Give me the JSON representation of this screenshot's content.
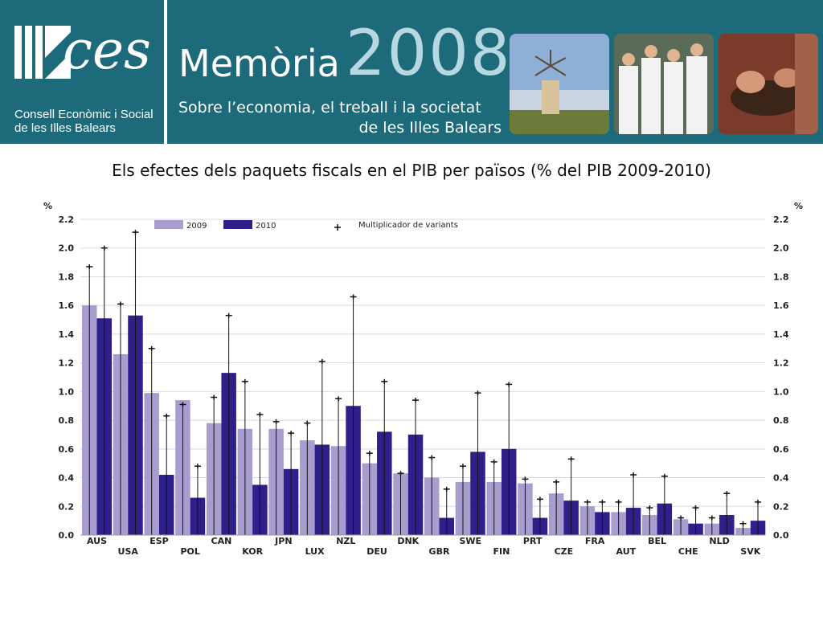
{
  "header": {
    "logo_text": "ces",
    "org_line1": "Consell Econòmic i Social",
    "org_line2": "de les Illes Balears",
    "title": "Memòria",
    "year": "2008",
    "subtitle_line1": "Sobre l’economia, el treball i la societat",
    "subtitle_line2": "de les Illes Balears",
    "colors": {
      "teal": "#1d6b7a",
      "year": "#b7d7e2"
    }
  },
  "chart_data": {
    "type": "bar",
    "title": "Els efectes dels paquets fiscals en el PIB per països (% del PIB 2009-2010)",
    "ylabel_left": "%",
    "ylabel_right": "%",
    "ylim": [
      0,
      2.2
    ],
    "yticks": [
      "0.0",
      "0.2",
      "0.4",
      "0.6",
      "0.8",
      "1.0",
      "1.2",
      "1.4",
      "1.6",
      "1.8",
      "2.0",
      "2.2"
    ],
    "grid": true,
    "legend_placement": "top",
    "legend_marker_label": "Multiplicador de variants",
    "categories": [
      "AUS",
      "USA",
      "ESP",
      "POL",
      "CAN",
      "KOR",
      "JPN",
      "LUX",
      "NZL",
      "DEU",
      "DNK",
      "GBR",
      "SWE",
      "FIN",
      "PRT",
      "CZE",
      "FRA",
      "AUT",
      "BEL",
      "CHE",
      "NLD",
      "SVK"
    ],
    "series": [
      {
        "name": "2009",
        "color": "#a99cce",
        "values": [
          1.6,
          1.26,
          0.99,
          0.94,
          0.78,
          0.74,
          0.74,
          0.66,
          0.62,
          0.5,
          0.43,
          0.4,
          0.37,
          0.37,
          0.36,
          0.29,
          0.2,
          0.16,
          0.14,
          0.11,
          0.08,
          0.05
        ],
        "error_high": [
          1.87,
          1.61,
          1.3,
          0.91,
          0.96,
          1.07,
          0.79,
          0.78,
          0.95,
          0.57,
          0.43,
          0.54,
          0.48,
          0.51,
          0.39,
          0.37,
          0.23,
          0.23,
          0.19,
          0.12,
          0.12,
          0.08
        ]
      },
      {
        "name": "2010",
        "color": "#2e1f8a",
        "values": [
          1.51,
          1.53,
          0.42,
          0.26,
          1.13,
          0.35,
          0.46,
          0.63,
          0.9,
          0.72,
          0.7,
          0.12,
          0.58,
          0.6,
          0.12,
          0.24,
          0.16,
          0.19,
          0.22,
          0.08,
          0.14,
          0.1
        ],
        "error_high": [
          2.0,
          2.11,
          0.83,
          0.48,
          1.53,
          0.84,
          0.71,
          1.21,
          1.66,
          1.07,
          0.94,
          0.32,
          0.99,
          1.05,
          0.25,
          0.53,
          0.23,
          0.42,
          0.41,
          0.19,
          0.29,
          0.23
        ]
      }
    ]
  }
}
